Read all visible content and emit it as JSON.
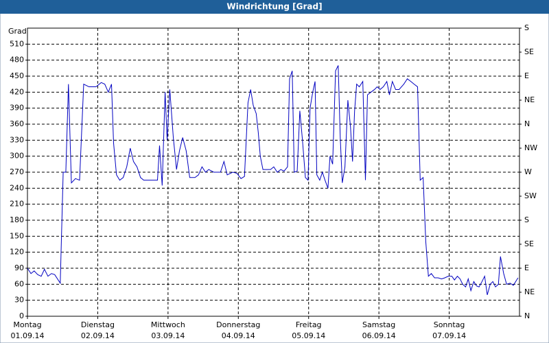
{
  "chart_data": {
    "type": "line",
    "title": "Windrichtung [Grad]",
    "ylabel": "Grad",
    "xlim": [
      0,
      168
    ],
    "xticks": [
      {
        "value": 0,
        "label": "Montag"
      },
      {
        "value": 24,
        "label": "Dienstag"
      },
      {
        "value": 48,
        "label": "Mittwoch"
      },
      {
        "value": 72,
        "label": "Donnerstag"
      },
      {
        "value": 96,
        "label": "Freitag"
      },
      {
        "value": 120,
        "label": "Samstag"
      },
      {
        "value": 144,
        "label": "Sonntag"
      }
    ],
    "xtick_dates": [
      "01.09.14",
      "02.09.14",
      "03.09.14",
      "04.09.14",
      "05.09.14",
      "06.09.14",
      "07.09.14"
    ],
    "ylim": [
      0,
      540
    ],
    "yticks": [
      0,
      30,
      60,
      90,
      120,
      150,
      180,
      210,
      240,
      270,
      300,
      330,
      360,
      390,
      420,
      450,
      480,
      510
    ],
    "y2lim": [
      0,
      540
    ],
    "y2ticks": [
      {
        "value": 0,
        "label": "N"
      },
      {
        "value": 45,
        "label": "NE"
      },
      {
        "value": 90,
        "label": "E"
      },
      {
        "value": 135,
        "label": "SE"
      },
      {
        "value": 180,
        "label": "S"
      },
      {
        "value": 225,
        "label": "SW"
      },
      {
        "value": 270,
        "label": "W"
      },
      {
        "value": 315,
        "label": "NW"
      },
      {
        "value": 360,
        "label": "N"
      },
      {
        "value": 405,
        "label": "NE"
      },
      {
        "value": 450,
        "label": "E"
      },
      {
        "value": 495,
        "label": "SE"
      },
      {
        "value": 540,
        "label": "S"
      }
    ],
    "grid": true,
    "color": "#0000c0",
    "x": [
      0,
      1.2,
      2.3,
      3.5,
      4.7,
      5.8,
      7.0,
      8.2,
      9.3,
      11.2,
      12.2,
      13.1,
      14.0,
      15.0,
      16.4,
      17.8,
      19.2,
      21.0,
      23.4,
      25.2,
      26.4,
      27.6,
      28.7,
      29.4,
      30.4,
      31.5,
      32.7,
      33.9,
      35.1,
      36.2,
      37.4,
      38.6,
      39.7,
      42.1,
      44.4,
      45.1,
      46.0,
      47.0,
      47.7,
      48.6,
      49.8,
      50.9,
      51.9,
      53.0,
      54.2,
      55.4,
      57.2,
      58.4,
      59.6,
      60.8,
      61.9,
      63.6,
      65.0,
      65.9,
      67.1,
      68.2,
      70.1,
      71.5,
      72.9,
      74.1,
      75.3,
      76.2,
      77.1,
      78.1,
      78.8,
      79.5,
      80.4,
      81.8,
      83.0,
      84.1,
      85.3,
      86.5,
      87.6,
      88.8,
      89.5,
      90.4,
      91.1,
      92.1,
      93.0,
      93.9,
      94.9,
      95.8,
      96.5,
      97.4,
      98.2,
      98.8,
      99.8,
      100.7,
      101.6,
      102.6,
      103.3,
      104.2,
      105.2,
      106.1,
      106.8,
      107.5,
      108.4,
      109.4,
      110.3,
      111.0,
      111.7,
      112.4,
      113.3,
      114.5,
      115.4,
      116.1,
      117.3,
      118.5,
      119.4,
      120.4,
      121.5,
      122.7,
      123.6,
      124.6,
      125.7,
      126.9,
      128.5,
      129.7,
      130.9,
      132.0,
      133.2,
      134.1,
      135.1,
      136.0,
      136.9,
      137.9,
      139.0,
      140.2,
      141.4,
      142.5,
      143.7,
      144.9,
      145.8,
      146.8,
      147.7,
      148.6,
      149.6,
      150.5,
      151.4,
      152.4,
      153.3,
      154.2,
      155.2,
      156.1,
      157.0,
      158.0,
      158.9,
      159.8,
      160.8,
      161.5,
      162.6,
      163.6,
      164.8,
      165.9,
      167.5
    ],
    "values": [
      90,
      80,
      85,
      78,
      75,
      88,
      75,
      80,
      78,
      62,
      270,
      270,
      435,
      250,
      258,
      255,
      435,
      430,
      430,
      438,
      435,
      420,
      435,
      325,
      265,
      255,
      260,
      280,
      315,
      290,
      280,
      260,
      255,
      255,
      255,
      320,
      245,
      420,
      330,
      425,
      335,
      275,
      310,
      335,
      310,
      260,
      260,
      265,
      280,
      270,
      275,
      270,
      270,
      270,
      290,
      265,
      270,
      268,
      258,
      262,
      400,
      425,
      395,
      380,
      345,
      300,
      275,
      275,
      275,
      280,
      270,
      275,
      272,
      280,
      445,
      460,
      270,
      272,
      385,
      330,
      260,
      255,
      390,
      420,
      440,
      265,
      255,
      270,
      255,
      240,
      300,
      285,
      460,
      470,
      335,
      250,
      280,
      405,
      355,
      290,
      385,
      435,
      430,
      440,
      255,
      415,
      420,
      425,
      430,
      425,
      430,
      440,
      415,
      440,
      425,
      425,
      435,
      445,
      440,
      435,
      430,
      255,
      260,
      140,
      75,
      80,
      72,
      72,
      70,
      72,
      75,
      75,
      68,
      75,
      70,
      60,
      55,
      70,
      48,
      65,
      57,
      55,
      65,
      75,
      40,
      60,
      65,
      55,
      60,
      112,
      80,
      60,
      62,
      58,
      72
    ]
  }
}
